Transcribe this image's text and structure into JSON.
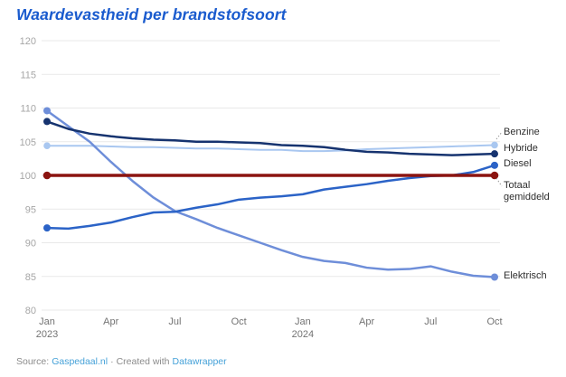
{
  "title": "Waardevastheid per brandstofsoort",
  "footer": {
    "prefix": "Source:",
    "source_link": "Gaspedaal.nl",
    "separator": "·",
    "created_with": "Created with",
    "tool_link": "Datawrapper"
  },
  "chart_data": {
    "type": "line",
    "title": "Waardevastheid per brandstofsoort",
    "xlabel": "",
    "ylabel": "",
    "ylim": [
      80,
      120
    ],
    "y_ticks": [
      80,
      85,
      90,
      95,
      100,
      105,
      110,
      115,
      120
    ],
    "grid": true,
    "legend_position": "right-of-line-ends",
    "months": [
      "Jan 2023",
      "Feb 2023",
      "Mar 2023",
      "Apr 2023",
      "May 2023",
      "Jun 2023",
      "Jul 2023",
      "Aug 2023",
      "Sep 2023",
      "Oct 2023",
      "Nov 2023",
      "Dec 2023",
      "Jan 2024",
      "Feb 2024",
      "Mar 2024",
      "Apr 2024",
      "May 2024",
      "Jun 2024",
      "Jul 2024",
      "Aug 2024",
      "Sep 2024",
      "Oct 2024"
    ],
    "x_tick_labels": [
      {
        "index": 0,
        "label": "Jan",
        "sublabel": "2023"
      },
      {
        "index": 3,
        "label": "Apr",
        "sublabel": ""
      },
      {
        "index": 6,
        "label": "Jul",
        "sublabel": ""
      },
      {
        "index": 9,
        "label": "Oct",
        "sublabel": ""
      },
      {
        "index": 12,
        "label": "Jan",
        "sublabel": "2024"
      },
      {
        "index": 15,
        "label": "Apr",
        "sublabel": ""
      },
      {
        "index": 18,
        "label": "Jul",
        "sublabel": ""
      },
      {
        "index": 21,
        "label": "Oct",
        "sublabel": ""
      }
    ],
    "series": [
      {
        "name": "Benzine",
        "color": "#a9c7f0",
        "values": [
          104.4,
          104.4,
          104.4,
          104.3,
          104.2,
          104.2,
          104.1,
          104.0,
          104.0,
          103.9,
          103.8,
          103.8,
          103.6,
          103.6,
          103.7,
          103.9,
          104.0,
          104.1,
          104.2,
          104.3,
          104.4,
          104.5
        ]
      },
      {
        "name": "Hybride",
        "color": "#16336f",
        "values": [
          108.0,
          106.9,
          106.2,
          105.8,
          105.5,
          105.3,
          105.2,
          105.0,
          105.0,
          104.9,
          104.8,
          104.5,
          104.4,
          104.2,
          103.8,
          103.5,
          103.4,
          103.2,
          103.1,
          103.0,
          103.1,
          103.2
        ]
      },
      {
        "name": "Diesel",
        "color": "#2b63c7",
        "values": [
          92.2,
          92.1,
          92.5,
          93.0,
          93.8,
          94.5,
          94.6,
          95.2,
          95.7,
          96.4,
          96.7,
          96.9,
          97.2,
          97.9,
          98.3,
          98.7,
          99.2,
          99.6,
          99.9,
          100.0,
          100.5,
          101.5
        ]
      },
      {
        "name": "Totaal gemiddeld",
        "color": "#8b1410",
        "values": [
          100,
          100,
          100,
          100,
          100,
          100,
          100,
          100,
          100,
          100,
          100,
          100,
          100,
          100,
          100,
          100,
          100,
          100,
          100,
          100,
          100,
          100
        ]
      },
      {
        "name": "Elektrisch",
        "color": "#6e8ed9",
        "values": [
          109.6,
          107.3,
          105.0,
          102.0,
          99.2,
          96.7,
          94.7,
          93.5,
          92.2,
          91.1,
          90.0,
          88.9,
          87.9,
          87.3,
          87.0,
          86.3,
          86.0,
          86.1,
          86.5,
          85.7,
          85.1,
          84.9
        ]
      }
    ]
  }
}
